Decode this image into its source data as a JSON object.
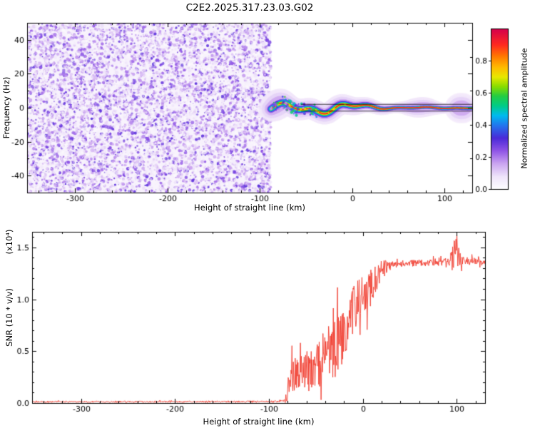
{
  "title": "C2E2.2025.317.23.03.G02",
  "colors": {
    "background": "#ffffff",
    "axes": "#000000"
  },
  "chart_data": [
    {
      "type": "heatmap",
      "title": "C2E2.2025.317.23.03.G02",
      "xlabel": "Height of straight line (km)",
      "ylabel": "Frequency (Hz)",
      "xlim": [
        -352,
        130
      ],
      "ylim": [
        -50,
        50
      ],
      "xticks": [
        -300,
        -200,
        -100,
        0,
        100
      ],
      "xtick_labels": [
        "-300",
        "-200",
        "-100",
        "0",
        "100"
      ],
      "yticks": [
        -40,
        -20,
        0,
        20,
        40
      ],
      "ytick_labels": [
        "-40",
        "-20",
        "0",
        "20",
        "40"
      ],
      "colorbar": {
        "label": "Normalized spectral amplitude",
        "range": [
          0,
          1
        ],
        "ticks": [
          0,
          0.2,
          0.4,
          0.6,
          0.8
        ],
        "tick_labels": [
          "0.0",
          "0.2",
          "0.4",
          "0.6",
          "0.8"
        ]
      },
      "colormap_stops": [
        [
          0,
          "#ffffff"
        ],
        [
          0.08,
          "#efe4fa"
        ],
        [
          0.16,
          "#cba4f0"
        ],
        [
          0.24,
          "#9055e6"
        ],
        [
          0.32,
          "#4a2ad8"
        ],
        [
          0.4,
          "#2277ee"
        ],
        [
          0.46,
          "#00bbee"
        ],
        [
          0.52,
          "#00cc88"
        ],
        [
          0.58,
          "#22cc44"
        ],
        [
          0.64,
          "#88dd00"
        ],
        [
          0.7,
          "#e8e800"
        ],
        [
          0.76,
          "#ffbb00"
        ],
        [
          0.83,
          "#ff7700"
        ],
        [
          0.9,
          "#ff2a20"
        ],
        [
          1,
          "#d4004c"
        ]
      ],
      "noise_region": {
        "x_start": -352,
        "x_end": -88,
        "amplitude_range": [
          0.04,
          0.3
        ]
      },
      "signal": {
        "x_start": -88,
        "x_end": 130,
        "center_frequency_hz": 0,
        "wobble_hz": 4,
        "peak_amplitude": 1.0
      },
      "fit_lines": {
        "color": "#000000",
        "offsets_hz": [
          2,
          -2
        ],
        "x_start": -55,
        "x_end": 130
      }
    },
    {
      "type": "line",
      "xlabel": "Height of straight line (km)",
      "ylabel": "SNR (10 * v/v)",
      "ylabel_scale": "(x10⁴)",
      "xlim": [
        -352,
        130
      ],
      "ylim": [
        0,
        1.65
      ],
      "xticks": [
        -300,
        -200,
        -100,
        0,
        100
      ],
      "xtick_labels": [
        "-300",
        "-200",
        "-100",
        "0",
        "100"
      ],
      "yticks": [
        0,
        0.5,
        1,
        1.5
      ],
      "ytick_labels": [
        "0.0",
        "0.5",
        "1.0",
        "1.5"
      ],
      "series": [
        {
          "name": "SNR",
          "color": "#f03b2e",
          "envelope": [
            [
              -352,
              0.012,
              0.008
            ],
            [
              -150,
              0.013,
              0.008
            ],
            [
              -95,
              0.014,
              0.009
            ],
            [
              -84,
              0.02,
              0.015
            ],
            [
              -80,
              0.12,
              0.1
            ],
            [
              -76,
              0.28,
              0.22
            ],
            [
              -70,
              0.3,
              0.22
            ],
            [
              -64,
              0.27,
              0.18
            ],
            [
              -58,
              0.3,
              0.2
            ],
            [
              -52,
              0.35,
              0.22
            ],
            [
              -46,
              0.42,
              0.3
            ],
            [
              -40,
              0.45,
              0.28
            ],
            [
              -34,
              0.5,
              0.28
            ],
            [
              -28,
              0.55,
              0.3
            ],
            [
              -22,
              0.65,
              0.3
            ],
            [
              -16,
              0.8,
              0.28
            ],
            [
              -10,
              0.9,
              0.25
            ],
            [
              -4,
              1.0,
              0.22
            ],
            [
              2,
              1.05,
              0.2
            ],
            [
              8,
              1.1,
              0.18
            ],
            [
              14,
              1.2,
              0.14
            ],
            [
              20,
              1.28,
              0.1
            ],
            [
              26,
              1.32,
              0.06
            ],
            [
              32,
              1.34,
              0.035
            ],
            [
              60,
              1.35,
              0.03
            ],
            [
              88,
              1.36,
              0.035
            ],
            [
              94,
              1.38,
              0.08
            ],
            [
              98,
              1.45,
              0.15
            ],
            [
              100,
              1.5,
              0.12
            ],
            [
              103,
              1.4,
              0.08
            ],
            [
              107,
              1.37,
              0.04
            ],
            [
              130,
              1.36,
              0.03
            ]
          ]
        }
      ]
    }
  ]
}
